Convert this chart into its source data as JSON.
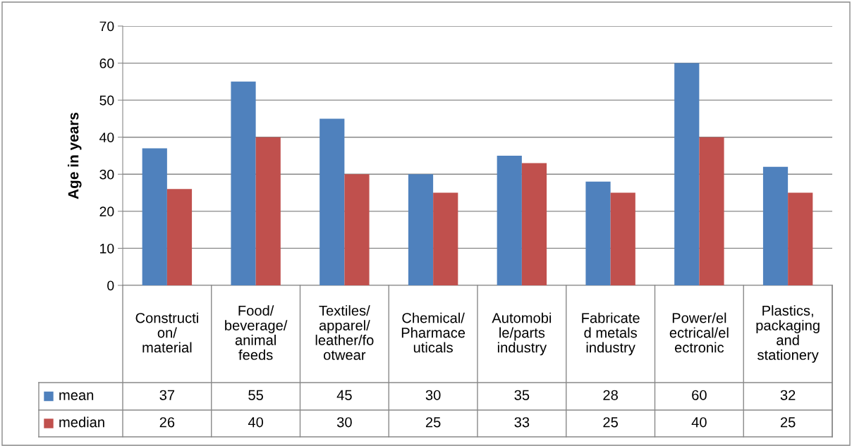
{
  "chart_data": {
    "type": "bar",
    "ylabel": "Age in years",
    "categories": [
      "Constructi\non/\nmaterial",
      "Food/\nbeverage/\nanimal\nfeeds",
      "Textiles/\napparel/\nleather/fo\notwear",
      "Chemical/\nPharmace\nuticals",
      "Automobi\nle/parts\nindustry",
      "Fabricate\nd metals\nindustry",
      "Power/el\nectrical/el\nectronic",
      "Plastics,\npackaging\nand\nstationery"
    ],
    "series": [
      {
        "name": "mean",
        "color": "#4f81bd",
        "values": [
          37,
          55,
          45,
          30,
          35,
          28,
          60,
          32
        ]
      },
      {
        "name": "median",
        "color": "#c0504d",
        "values": [
          26,
          40,
          30,
          25,
          33,
          25,
          40,
          25
        ]
      }
    ],
    "ylim": [
      0,
      70
    ],
    "yticks": [
      0,
      10,
      20,
      30,
      40,
      50,
      60,
      70
    ],
    "grid": "y",
    "data_labels": true,
    "legend": "left"
  }
}
